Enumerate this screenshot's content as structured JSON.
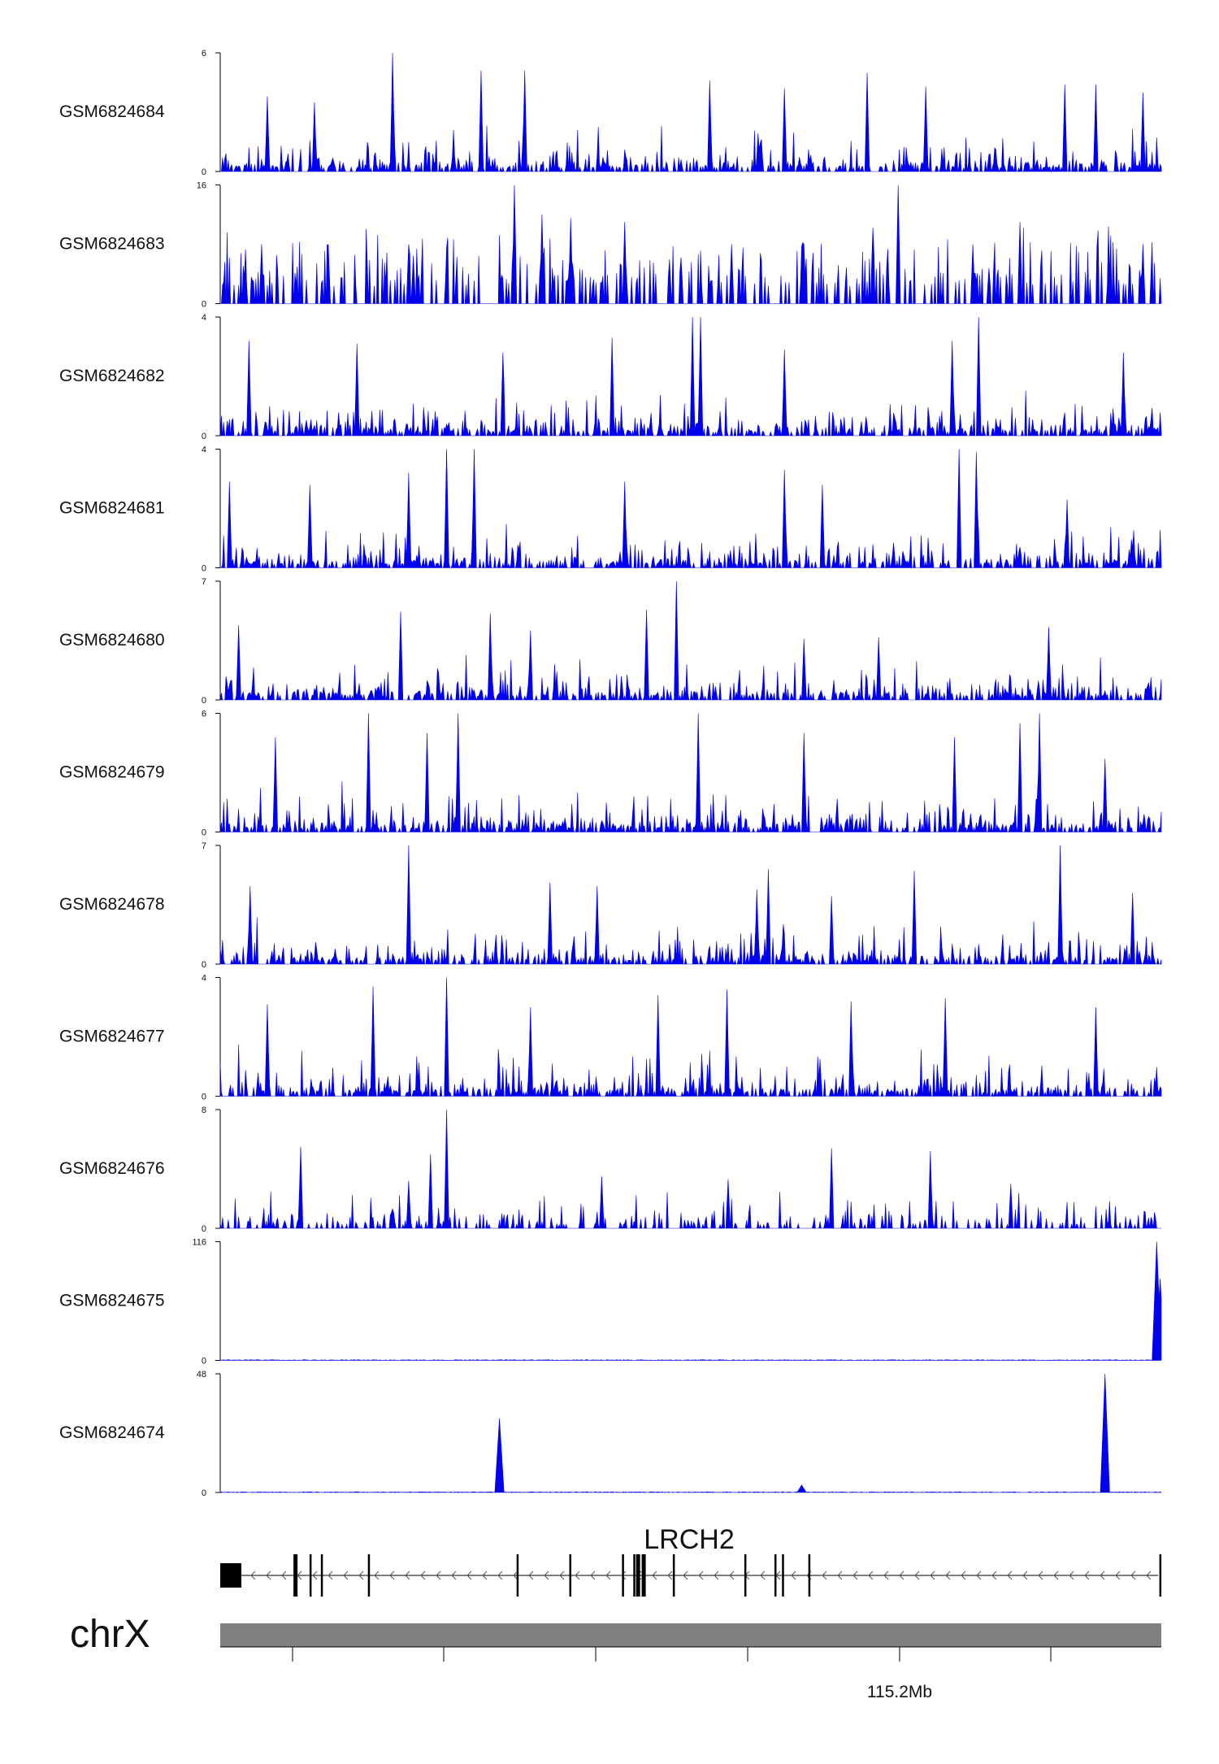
{
  "chart_data": {
    "type": "area",
    "title": "",
    "colors": {
      "signal": "#0000ee",
      "gene": "#000000",
      "ideogram": "#808080",
      "axis": "#000000"
    },
    "x_unit": "normalized position across shown region (0 = left, 1 = right)",
    "tracks": [
      {
        "name": "GSM6824684",
        "ymax": 6,
        "ymin": 0,
        "ymax_label": "6",
        "ymin_label": "0",
        "profile": "dense",
        "peaks": [
          [
            0.183,
            6.0
          ],
          [
            0.277,
            5.1
          ],
          [
            0.323,
            5.1
          ],
          [
            0.52,
            4.6
          ],
          [
            0.687,
            5.0
          ],
          [
            0.897,
            4.4
          ],
          [
            0.93,
            4.4
          ],
          [
            0.05,
            3.8
          ],
          [
            0.1,
            3.5
          ],
          [
            0.6,
            4.2
          ],
          [
            0.75,
            4.3
          ],
          [
            0.98,
            4.0
          ]
        ]
      },
      {
        "name": "GSM6824683",
        "ymax": 16,
        "ymin": 0,
        "ymax_label": "16",
        "ymin_label": "0",
        "profile": "sparse",
        "peaks": [
          [
            0.313,
            16.0
          ],
          [
            0.72,
            16.0
          ],
          [
            0.342,
            12.0
          ],
          [
            0.373,
            11.5
          ],
          [
            0.43,
            11.0
          ],
          [
            0.543,
            8.0
          ],
          [
            0.85,
            11.0
          ],
          [
            0.044,
            8.0
          ],
          [
            0.115,
            8.0
          ],
          [
            0.2,
            8.0
          ],
          [
            0.62,
            8.0
          ],
          [
            0.8,
            8.0
          ],
          [
            0.98,
            8.0
          ]
        ]
      },
      {
        "name": "GSM6824682",
        "ymax": 4,
        "ymin": 0,
        "ymax_label": "4",
        "ymin_label": "0",
        "profile": "dense",
        "peaks": [
          [
            0.502,
            4.0
          ],
          [
            0.51,
            4.0
          ],
          [
            0.806,
            4.0
          ],
          [
            0.145,
            3.1
          ],
          [
            0.416,
            3.3
          ],
          [
            0.778,
            3.2
          ],
          [
            0.03,
            3.2
          ],
          [
            0.3,
            2.8
          ],
          [
            0.6,
            2.9
          ],
          [
            0.96,
            2.8
          ]
        ]
      },
      {
        "name": "GSM6824681",
        "ymax": 4,
        "ymin": 0,
        "ymax_label": "4",
        "ymin_label": "0",
        "profile": "dense",
        "peaks": [
          [
            0.24,
            4.0
          ],
          [
            0.27,
            4.0
          ],
          [
            0.785,
            4.0
          ],
          [
            0.804,
            3.9
          ],
          [
            0.095,
            2.8
          ],
          [
            0.2,
            3.2
          ],
          [
            0.6,
            3.3
          ],
          [
            0.64,
            2.8
          ],
          [
            0.43,
            2.9
          ],
          [
            0.01,
            2.9
          ],
          [
            0.9,
            2.3
          ]
        ]
      },
      {
        "name": "GSM6824680",
        "ymax": 7,
        "ymin": 0,
        "ymax_label": "7",
        "ymin_label": "0",
        "profile": "dense",
        "peaks": [
          [
            0.485,
            7.0
          ],
          [
            0.453,
            5.3
          ],
          [
            0.192,
            5.2
          ],
          [
            0.287,
            5.1
          ],
          [
            0.02,
            4.4
          ],
          [
            0.33,
            4.1
          ],
          [
            0.88,
            4.3
          ],
          [
            0.7,
            3.7
          ],
          [
            0.62,
            3.6
          ]
        ]
      },
      {
        "name": "GSM6824679",
        "ymax": 6,
        "ymin": 0,
        "ymax_label": "6",
        "ymin_label": "0",
        "profile": "dense",
        "peaks": [
          [
            0.158,
            6.0
          ],
          [
            0.253,
            6.0
          ],
          [
            0.508,
            6.0
          ],
          [
            0.87,
            6.0
          ],
          [
            0.85,
            5.5
          ],
          [
            0.058,
            4.8
          ],
          [
            0.22,
            5.0
          ],
          [
            0.62,
            5.0
          ],
          [
            0.78,
            4.8
          ],
          [
            0.94,
            3.7
          ]
        ]
      },
      {
        "name": "GSM6824678",
        "ymax": 7,
        "ymin": 0,
        "ymax_label": "7",
        "ymin_label": "0",
        "profile": "dense",
        "peaks": [
          [
            0.2,
            7.0
          ],
          [
            0.892,
            7.0
          ],
          [
            0.583,
            5.6
          ],
          [
            0.738,
            5.5
          ],
          [
            0.35,
            4.8
          ],
          [
            0.57,
            4.4
          ],
          [
            0.032,
            4.6
          ],
          [
            0.4,
            4.6
          ],
          [
            0.65,
            4.0
          ],
          [
            0.97,
            4.2
          ]
        ]
      },
      {
        "name": "GSM6824677",
        "ymax": 4,
        "ymin": 0,
        "ymax_label": "4",
        "ymin_label": "0",
        "profile": "dense",
        "peaks": [
          [
            0.24,
            4.0
          ],
          [
            0.162,
            3.7
          ],
          [
            0.538,
            3.6
          ],
          [
            0.465,
            3.4
          ],
          [
            0.67,
            3.2
          ],
          [
            0.77,
            3.3
          ],
          [
            0.05,
            3.1
          ],
          [
            0.33,
            3.0
          ],
          [
            0.93,
            3.0
          ]
        ]
      },
      {
        "name": "GSM6824676",
        "ymax": 8,
        "ymin": 0,
        "ymax_label": "8",
        "ymin_label": "0",
        "profile": "medium",
        "peaks": [
          [
            0.24,
            8.0
          ],
          [
            0.223,
            5.0
          ],
          [
            0.086,
            5.5
          ],
          [
            0.65,
            5.4
          ],
          [
            0.754,
            5.2
          ],
          [
            0.405,
            3.5
          ],
          [
            0.2,
            3.2
          ],
          [
            0.84,
            3.0
          ],
          [
            0.54,
            3.3
          ]
        ]
      },
      {
        "name": "GSM6824675",
        "ymax": 116,
        "ymin": 0,
        "ymax_label": "116",
        "ymin_label": "0",
        "profile": "flat",
        "peaks": [
          [
            0.995,
            116.0
          ],
          [
            0.999,
            80.0
          ]
        ]
      },
      {
        "name": "GSM6824674",
        "ymax": 48,
        "ymin": 0,
        "ymax_label": "48",
        "ymin_label": "0",
        "profile": "flat",
        "peaks": [
          [
            0.297,
            30.0
          ],
          [
            0.94,
            48.0
          ],
          [
            0.618,
            3.0
          ]
        ]
      }
    ],
    "gene": {
      "name": "LRCH2",
      "strand": "-",
      "exons": [
        0.0,
        0.08,
        0.096,
        0.108,
        0.158,
        0.316,
        0.372,
        0.428,
        0.44,
        0.444,
        0.45,
        0.482,
        0.558,
        0.59,
        0.598,
        0.626,
        0.999
      ]
    },
    "chromosome": "chrX",
    "axis_ticks": [
      "",
      "",
      "",
      "",
      "115.2Mb",
      ""
    ]
  }
}
